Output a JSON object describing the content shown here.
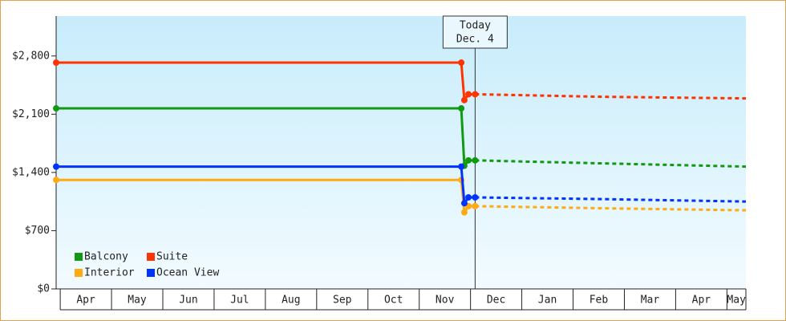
{
  "chart_data": {
    "type": "line",
    "month_labels": [
      "Apr",
      "May",
      "Jun",
      "Jul",
      "Aug",
      "Sep",
      "Oct",
      "Nov",
      "Dec",
      "Jan",
      "Feb",
      "Mar",
      "Apr",
      "May"
    ],
    "x": [
      -0.08,
      7.82,
      7.88,
      7.96,
      8.09
    ],
    "forecast_x": [
      8.09,
      10.5,
      13.37
    ],
    "xlim": [
      -0.08,
      13.37
    ],
    "ylim": [
      0,
      3280
    ],
    "yticks": [
      {
        "value": 0,
        "label": "$0"
      },
      {
        "value": 700,
        "label": "$700"
      },
      {
        "value": 1400,
        "label": "$1,400"
      },
      {
        "value": 2100,
        "label": "$2,100"
      },
      {
        "value": 2800,
        "label": "$2,800"
      }
    ],
    "series": [
      {
        "name": "Balcony",
        "color": "#119911",
        "values": [
          2170,
          2170,
          1480,
          1545,
          1545
        ],
        "forecast_values": [
          1545,
          1510,
          1470
        ]
      },
      {
        "name": "Suite",
        "color": "#ff3300",
        "values": [
          2720,
          2720,
          2270,
          2340,
          2340
        ],
        "forecast_values": [
          2340,
          2310,
          2290
        ]
      },
      {
        "name": "Interior",
        "color": "#ffaa11",
        "values": [
          1310,
          1310,
          920,
          995,
          995
        ],
        "forecast_values": [
          995,
          970,
          945
        ]
      },
      {
        "name": "Ocean View",
        "color": "#0033ff",
        "values": [
          1470,
          1470,
          1030,
          1100,
          1100
        ],
        "forecast_values": [
          1100,
          1080,
          1050
        ]
      }
    ],
    "today": {
      "x": 8.09,
      "label": [
        "Today",
        "Dec. 4"
      ]
    }
  }
}
